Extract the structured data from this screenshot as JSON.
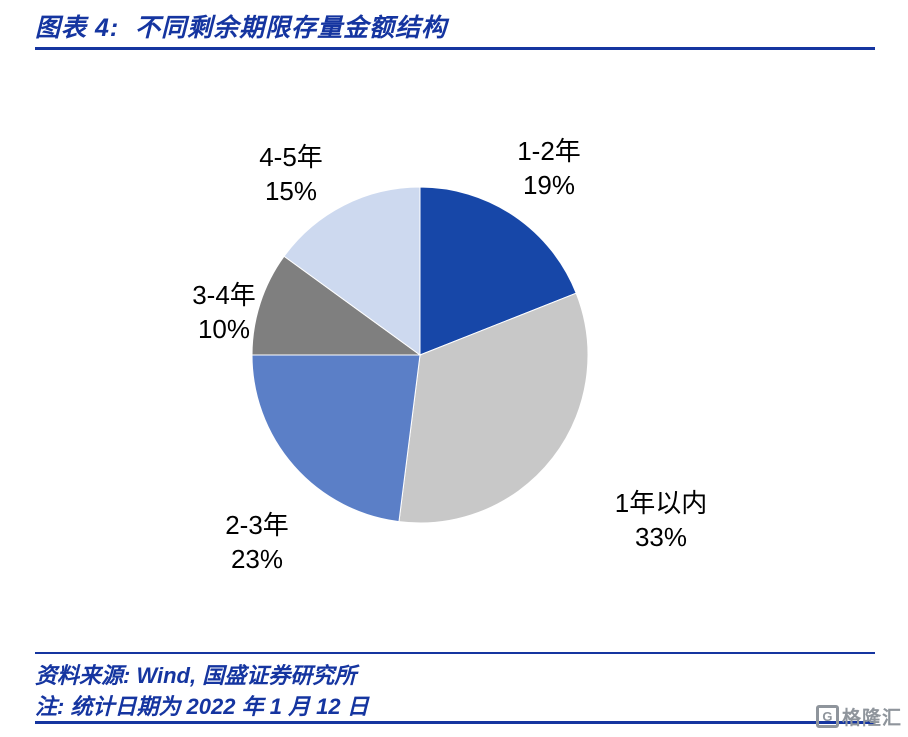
{
  "header": {
    "title": "图表 4:  不同剩余期限存量金额结构"
  },
  "theme": {
    "accent_blue": "#1535a0",
    "watermark_gray": "#8f959c"
  },
  "chart_data": {
    "type": "pie",
    "title": "不同剩余期限存量金额结构",
    "categories": [
      "1-2年",
      "1年以内",
      "2-3年",
      "3-4年",
      "4-5年"
    ],
    "values": [
      19,
      33,
      23,
      10,
      15
    ],
    "value_labels": [
      "19%",
      "33%",
      "23%",
      "10%",
      "15%"
    ],
    "unit": "%",
    "colors": [
      "#1747a8",
      "#c8c8c8",
      "#5b7fc7",
      "#7f7f7f",
      "#cdd9ef"
    ],
    "start_angle": "12-oclock",
    "direction": "clockwise",
    "legend_position": "outside-labels",
    "slice_border_color": "#ffffff"
  },
  "footer": {
    "source": "资料来源: Wind, 国盛证券研究所",
    "note": "注: 统计日期为 2022 年 1 月 12 日"
  },
  "watermark": {
    "logo_letter": "G",
    "text": "格隆汇"
  }
}
